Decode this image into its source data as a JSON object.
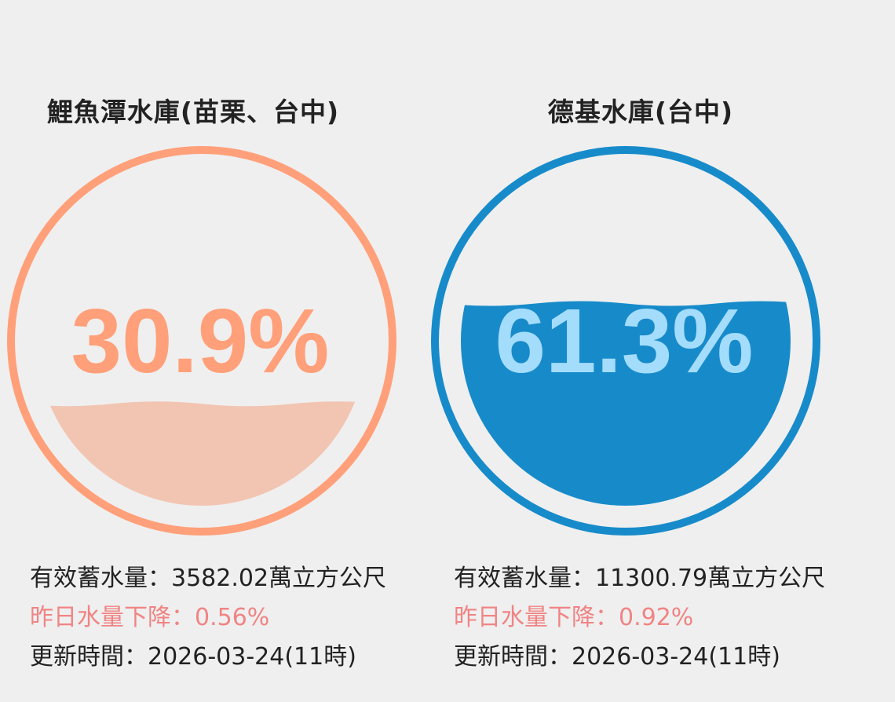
{
  "reservoirs": [
    {
      "name": "鯉魚潭水庫(苗栗、台中)",
      "percent": 30.9,
      "percent_label": "30.9%",
      "storage_label": "有效蓄水量：",
      "storage_value": "3582.02萬立方公尺",
      "change_label": "昨日水量下降：",
      "change_value": "0.56%",
      "updated_label": "更新時間：",
      "updated_value": "2026-03-24(11時)",
      "colors": {
        "ring": "#ffa07a",
        "water": "#f2c5b2",
        "percent_text": "#ffa07a"
      }
    },
    {
      "name": "德基水庫(台中)",
      "percent": 61.3,
      "percent_label": "61.3%",
      "storage_label": "有效蓄水量：",
      "storage_value": "11300.79萬立方公尺",
      "change_label": "昨日水量下降：",
      "change_value": "0.92%",
      "updated_label": "更新時間：",
      "updated_value": "2026-03-24(11時)",
      "colors": {
        "ring": "#178bca",
        "water": "#178bca",
        "percent_text": "#a4dcfc"
      }
    }
  ],
  "colors": {
    "background": "#efefef",
    "text": "#222222",
    "decline": "#f08484"
  }
}
